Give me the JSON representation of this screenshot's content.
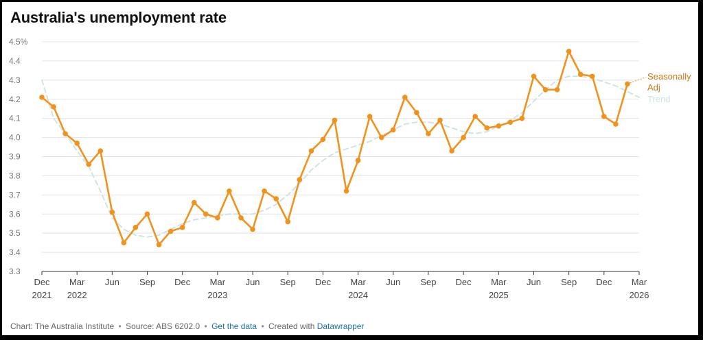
{
  "chart_data": {
    "type": "line",
    "title": "Australia's unemployment rate",
    "y_ticks": [
      "4.5%",
      "4.4",
      "4.3",
      "4.2",
      "4.1",
      "4.0",
      "3.9",
      "3.8",
      "3.7",
      "3.6",
      "3.5",
      "3.4",
      "3.3"
    ],
    "y_tick_values": [
      4.5,
      4.4,
      4.3,
      4.2,
      4.1,
      4.0,
      3.9,
      3.8,
      3.7,
      3.6,
      3.5,
      3.4,
      3.3
    ],
    "ylim": [
      3.3,
      4.5
    ],
    "xlim": [
      "2021-12",
      "2026-03"
    ],
    "x_ticks": [
      {
        "month": "2021-12",
        "label": "Dec",
        "year": "2021"
      },
      {
        "month": "2022-03",
        "label": "Mar",
        "year": "2022"
      },
      {
        "month": "2022-06",
        "label": "Jun",
        "year": ""
      },
      {
        "month": "2022-09",
        "label": "Sep",
        "year": ""
      },
      {
        "month": "2022-12",
        "label": "Dec",
        "year": ""
      },
      {
        "month": "2023-03",
        "label": "Mar",
        "year": "2023"
      },
      {
        "month": "2023-06",
        "label": "Jun",
        "year": ""
      },
      {
        "month": "2023-09",
        "label": "Sep",
        "year": ""
      },
      {
        "month": "2023-12",
        "label": "Dec",
        "year": ""
      },
      {
        "month": "2024-03",
        "label": "Mar",
        "year": "2024"
      },
      {
        "month": "2024-06",
        "label": "Jun",
        "year": ""
      },
      {
        "month": "2024-09",
        "label": "Sep",
        "year": ""
      },
      {
        "month": "2024-12",
        "label": "Dec",
        "year": ""
      },
      {
        "month": "2025-03",
        "label": "Mar",
        "year": "2025"
      },
      {
        "month": "2025-06",
        "label": "Jun",
        "year": ""
      },
      {
        "month": "2025-09",
        "label": "Sep",
        "year": ""
      },
      {
        "month": "2025-12",
        "label": "Dec",
        "year": ""
      },
      {
        "month": "2026-03",
        "label": "Mar",
        "year": "2026"
      }
    ],
    "grid": true,
    "series": [
      {
        "name": "Seasonally Adj",
        "label_lines": [
          "Seasonally",
          "Adj"
        ],
        "color": "#f0921c",
        "style": "solid",
        "x": [
          "2021-12",
          "2022-01",
          "2022-02",
          "2022-03",
          "2022-04",
          "2022-05",
          "2022-06",
          "2022-07",
          "2022-08",
          "2022-09",
          "2022-10",
          "2022-11",
          "2022-12",
          "2023-01",
          "2023-02",
          "2023-03",
          "2023-04",
          "2023-05",
          "2023-06",
          "2023-07",
          "2023-08",
          "2023-09",
          "2023-10",
          "2023-11",
          "2023-12",
          "2024-01",
          "2024-02",
          "2024-03",
          "2024-04",
          "2024-05",
          "2024-06",
          "2024-07",
          "2024-08",
          "2024-09",
          "2024-10",
          "2024-11",
          "2024-12",
          "2025-01",
          "2025-02",
          "2025-03",
          "2025-04",
          "2025-05",
          "2025-06",
          "2025-07",
          "2025-08",
          "2025-09",
          "2025-10",
          "2025-11",
          "2025-12",
          "2026-01",
          "2026-02"
        ],
        "values": [
          4.21,
          4.16,
          4.02,
          3.97,
          3.86,
          3.93,
          3.61,
          3.45,
          3.53,
          3.6,
          3.44,
          3.51,
          3.53,
          3.66,
          3.6,
          3.58,
          3.72,
          3.58,
          3.52,
          3.72,
          3.68,
          3.56,
          3.78,
          3.93,
          3.99,
          4.09,
          3.72,
          3.88,
          4.11,
          4.0,
          4.04,
          4.21,
          4.13,
          4.02,
          4.09,
          3.93,
          4.0,
          4.11,
          4.05,
          4.06,
          4.08,
          4.1,
          4.32,
          4.25,
          4.25,
          4.45,
          4.33,
          4.32,
          4.11,
          4.07,
          4.28
        ]
      },
      {
        "name": "Trend",
        "label_lines": [
          "Trend"
        ],
        "color": "#cfe3e5",
        "style": "dashed",
        "x": [
          "2021-12",
          "2022-01",
          "2022-02",
          "2022-03",
          "2022-04",
          "2022-05",
          "2022-06",
          "2022-07",
          "2022-08",
          "2022-09",
          "2022-10",
          "2022-11",
          "2022-12",
          "2023-01",
          "2023-02",
          "2023-03",
          "2023-04",
          "2023-05",
          "2023-06",
          "2023-07",
          "2023-08",
          "2023-09",
          "2023-10",
          "2023-11",
          "2023-12",
          "2024-01",
          "2024-02",
          "2024-03",
          "2024-04",
          "2024-05",
          "2024-06",
          "2024-07",
          "2024-08",
          "2024-09",
          "2024-10",
          "2024-11",
          "2024-12",
          "2025-01",
          "2025-02",
          "2025-03",
          "2025-04",
          "2025-05",
          "2025-06",
          "2025-07",
          "2025-08",
          "2025-09",
          "2025-10",
          "2025-11",
          "2025-12",
          "2026-01",
          "2026-02",
          "2026-03"
        ],
        "values": [
          4.3,
          4.1,
          4.02,
          3.93,
          3.85,
          3.72,
          3.58,
          3.52,
          3.49,
          3.48,
          3.49,
          3.52,
          3.55,
          3.57,
          3.58,
          3.59,
          3.6,
          3.6,
          3.6,
          3.62,
          3.65,
          3.7,
          3.76,
          3.83,
          3.88,
          3.92,
          3.94,
          3.96,
          3.98,
          4.01,
          4.04,
          4.07,
          4.08,
          4.08,
          4.07,
          4.05,
          4.03,
          4.02,
          4.03,
          4.06,
          4.09,
          4.13,
          4.19,
          4.25,
          4.3,
          4.32,
          4.32,
          4.31,
          4.29,
          4.27,
          4.24,
          4.21
        ]
      }
    ]
  },
  "footer": {
    "chart_credit": "Chart: The Australia Institute",
    "source": "Source: ABS 6202.0",
    "get_data": "Get the data",
    "created_with": "Created with",
    "tool": "Datawrapper",
    "separator": "•"
  }
}
